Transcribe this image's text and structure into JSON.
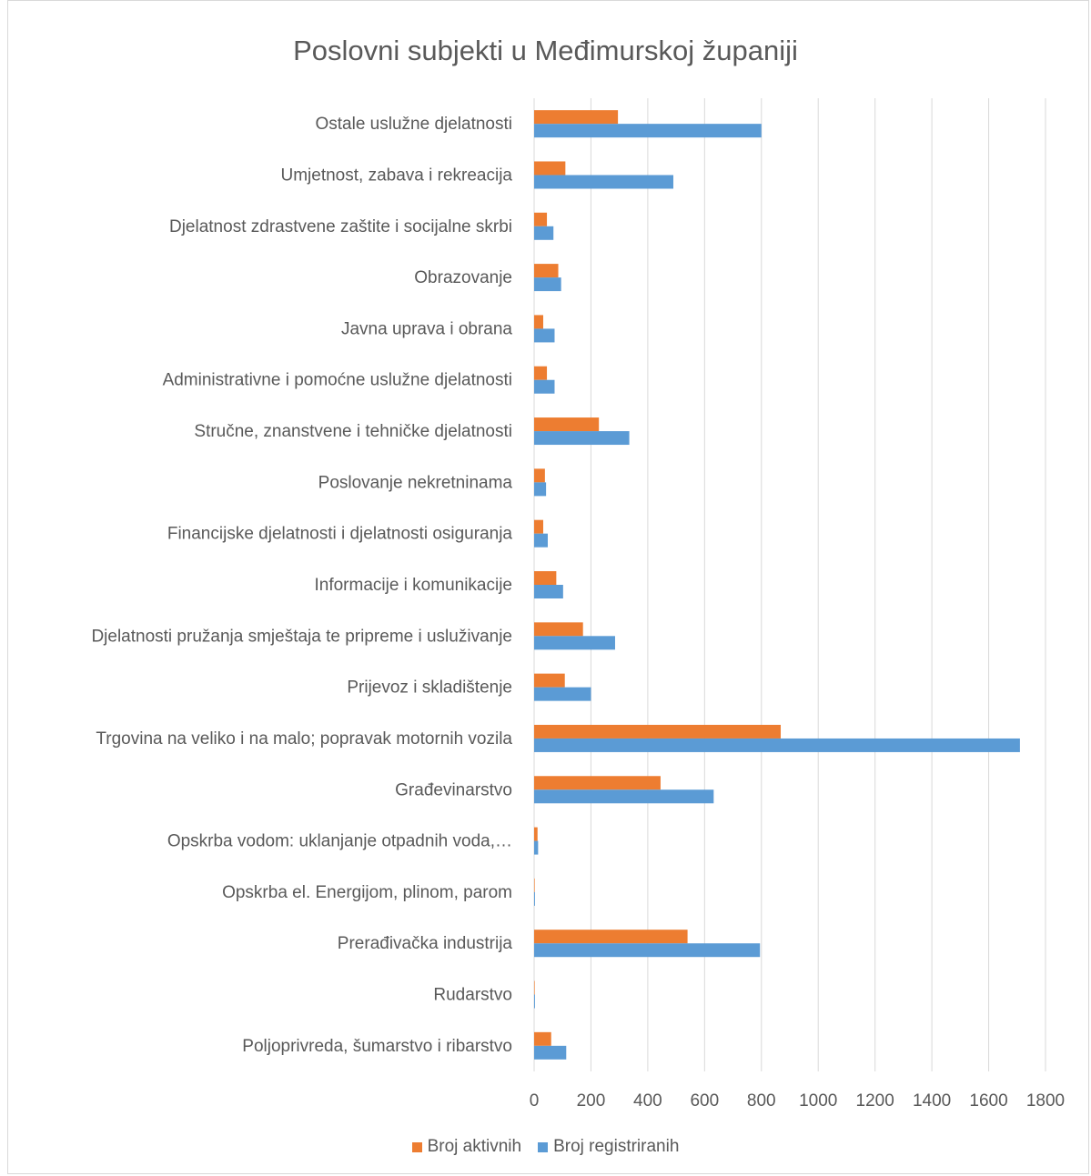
{
  "chart_data": {
    "type": "bar",
    "orientation": "horizontal",
    "title": "Poslovni subjekti u Međimurskoj županiji",
    "categories": [
      "Ostale uslužne djelatnosti",
      "Umjetnost, zabava i rekreacija",
      "Djelatnost zdrastvene zaštite i socijalne skrbi",
      "Obrazovanje",
      "Javna uprava i obrana",
      "Administrativne i pomoćne uslužne djelatnosti",
      "Stručne, znanstvene i tehničke djelatnosti",
      "Poslovanje nekretninama",
      "Financijske djelatnosti i djelatnosti osiguranja",
      "Informacije i komunikacije",
      "Djelatnosti pružanja smještaja te pripreme i usluživanje",
      "Prijevoz i skladištenje",
      "Trgovina na veliko i na malo; popravak motornih vozila",
      "Građevinarstvo",
      "Opskrba vodom: uklanjanje otpadnih voda,…",
      "Opskrba el. Energijom, plinom, parom",
      "Prerađivačka industrija",
      "Rudarstvo",
      "Poljoprivreda, šumarstvo i ribarstvo"
    ],
    "series": [
      {
        "name": "Broj aktivnih",
        "color": "#ed7d31",
        "values": [
          295,
          110,
          45,
          85,
          32,
          45,
          228,
          38,
          32,
          78,
          172,
          108,
          868,
          445,
          12,
          2,
          540,
          2,
          60
        ]
      },
      {
        "name": "Broj registriranih",
        "color": "#5b9bd5",
        "values": [
          800,
          490,
          68,
          95,
          72,
          72,
          335,
          42,
          48,
          102,
          285,
          200,
          1710,
          632,
          14,
          3,
          795,
          3,
          113
        ]
      }
    ],
    "xlim": [
      0,
      1800
    ],
    "xticks": [
      "0",
      "200",
      "400",
      "600",
      "800",
      "1000",
      "1200",
      "1400",
      "1600",
      "1800"
    ],
    "grid": "vertical",
    "legend_position": "bottom"
  }
}
